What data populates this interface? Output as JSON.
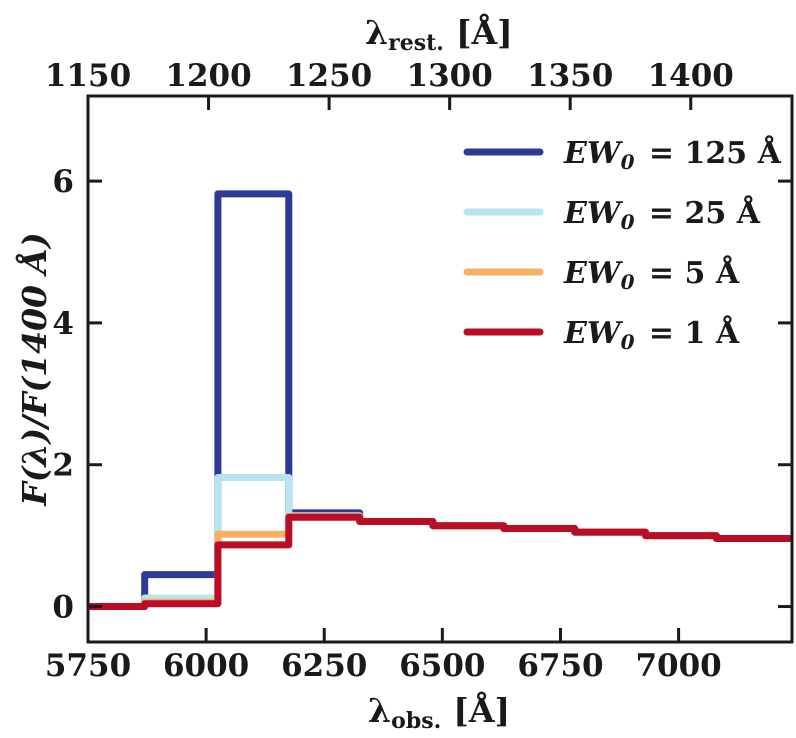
{
  "chart_data": {
    "type": "line",
    "step": true,
    "xlabel": "λobs. [Å]",
    "xlabel_main": "λ",
    "xlabel_sub": "obs.",
    "xlabel_unit": "[Å]",
    "x2label": "λrest. [Å]",
    "x2label_main": "λ",
    "x2label_sub": "rest.",
    "x2label_unit": "[Å]",
    "ylabel": "F(λ)/F(1400 Å)",
    "xlim": [
      5750,
      7240
    ],
    "ylim": [
      -0.5,
      7.2
    ],
    "x2lim": [
      1150,
      1442
    ],
    "xticks": [
      5750,
      6000,
      6250,
      6500,
      6750,
      7000
    ],
    "xtick_labels": [
      "5750",
      "6000",
      "6250",
      "6500",
      "6750",
      "7000"
    ],
    "x2ticks": [
      1150,
      1200,
      1250,
      1300,
      1350,
      1400
    ],
    "x2tick_labels": [
      "1150",
      "1200",
      "1250",
      "1300",
      "1350",
      "1400"
    ],
    "yticks": [
      0,
      2,
      4,
      6
    ],
    "ytick_labels": [
      "0",
      "2",
      "4",
      "6"
    ],
    "legend_position": "upper-right",
    "series": [
      {
        "name": "EW0 = 125 Å",
        "label_main": "EW",
        "label_sub": "0",
        "label_rest": "= 125 Å",
        "color": "#2e3a96",
        "x": [
          5750,
          5870,
          5870,
          6025,
          6025,
          6175,
          6175,
          6325,
          6325,
          6480,
          6480,
          6630,
          6630,
          6780,
          6780,
          6930,
          6930,
          7080,
          7080,
          7240
        ],
        "y": [
          0,
          0,
          0.45,
          0.45,
          5.82,
          5.82,
          1.32,
          1.32,
          1.2,
          1.2,
          1.14,
          1.14,
          1.1,
          1.1,
          1.05,
          1.05,
          1.0,
          1.0,
          0.96,
          0.96
        ]
      },
      {
        "name": "EW0 = 25 Å",
        "label_main": "EW",
        "label_sub": "0",
        "label_rest": "= 25 Å",
        "color": "#b8e3f0",
        "x": [
          5750,
          5870,
          5870,
          6025,
          6025,
          6175,
          6175,
          6325,
          6325,
          6480,
          6480,
          6630,
          6630,
          6780,
          6780,
          6930,
          6930,
          7080,
          7080,
          7240
        ],
        "y": [
          0,
          0,
          0.12,
          0.12,
          1.82,
          1.82,
          1.28,
          1.28,
          1.2,
          1.2,
          1.14,
          1.14,
          1.1,
          1.1,
          1.05,
          1.05,
          1.0,
          1.0,
          0.96,
          0.96
        ]
      },
      {
        "name": "EW0 = 5 Å",
        "label_main": "EW",
        "label_sub": "0",
        "label_rest": "= 5 Å",
        "color": "#f8b062",
        "x": [
          5750,
          5870,
          5870,
          6025,
          6025,
          6175,
          6175,
          6325,
          6325,
          6480,
          6480,
          6630,
          6630,
          6780,
          6780,
          6930,
          6930,
          7080,
          7080,
          7240
        ],
        "y": [
          0,
          0,
          0.06,
          0.06,
          1.02,
          1.02,
          1.27,
          1.27,
          1.2,
          1.2,
          1.14,
          1.14,
          1.1,
          1.1,
          1.05,
          1.05,
          1.0,
          1.0,
          0.96,
          0.96
        ]
      },
      {
        "name": "EW0 = 1 Å",
        "label_main": "EW",
        "label_sub": "0",
        "label_rest": "= 1 Å",
        "color": "#bb0d26",
        "x": [
          5750,
          5870,
          5870,
          6025,
          6025,
          6175,
          6175,
          6325,
          6325,
          6480,
          6480,
          6630,
          6630,
          6780,
          6780,
          6930,
          6930,
          7080,
          7080,
          7240
        ],
        "y": [
          0,
          0,
          0.04,
          0.04,
          0.87,
          0.87,
          1.26,
          1.26,
          1.2,
          1.2,
          1.14,
          1.14,
          1.1,
          1.1,
          1.05,
          1.05,
          1.0,
          1.0,
          0.96,
          0.96
        ]
      }
    ]
  }
}
